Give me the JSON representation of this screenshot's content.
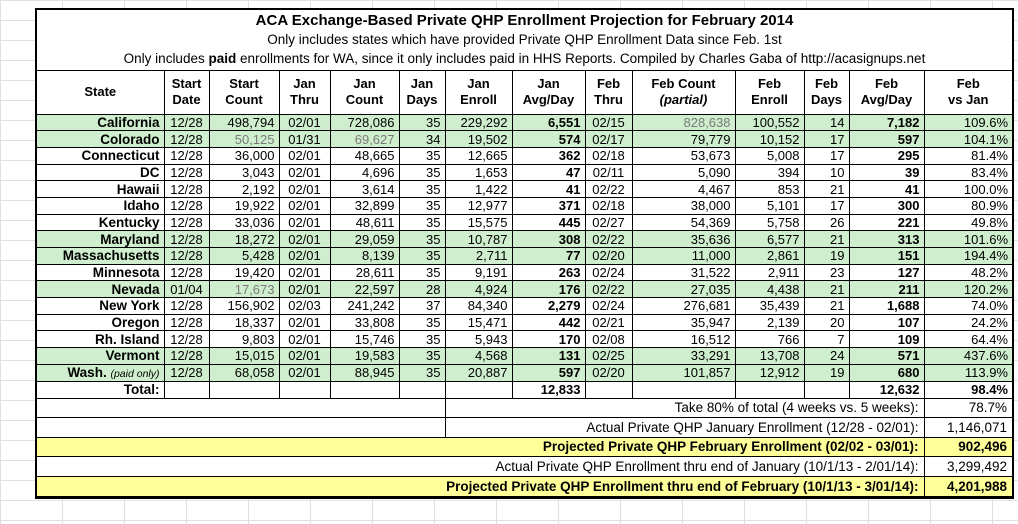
{
  "colors": {
    "row_highlight_green": "#cfeecd",
    "summary_highlight_yellow": "#ffff99",
    "estimate_text_gray": "#7a7a7a",
    "grid_line_gray": "#e0e0e0",
    "border_black": "#000000"
  },
  "chart_data": {
    "type": "table",
    "title": "ACA Exchange-Based Private QHP Enrollment Projection for February 2014",
    "subtitle": "Only includes states which have provided Private QHP Enrollment Data since Feb. 1st",
    "note_parts": {
      "pre": "Only includes ",
      "bold": "paid",
      "post": " enrollments for WA, since it only includes paid in HHS Reports. Compiled by Charles Gaba of http://acasignups.net"
    },
    "columns": [
      {
        "line1": "State",
        "line2": ""
      },
      {
        "line1": "Start",
        "line2": "Date"
      },
      {
        "line1": "Start",
        "line2": "Count"
      },
      {
        "line1": "Jan",
        "line2": "Thru"
      },
      {
        "line1": "Jan",
        "line2": "Count"
      },
      {
        "line1": "Jan",
        "line2": "Days"
      },
      {
        "line1": "Jan",
        "line2": "Enroll"
      },
      {
        "line1": "Jan",
        "line2": "Avg/Day"
      },
      {
        "line1": "Feb",
        "line2": "Thru"
      },
      {
        "line1": "Feb Count",
        "line2": "(partial)",
        "italic": true
      },
      {
        "line1": "Feb",
        "line2": "Enroll"
      },
      {
        "line1": "Feb",
        "line2": "Days"
      },
      {
        "line1": "Feb",
        "line2": "Avg/Day"
      },
      {
        "line1": "Feb",
        "line2": "vs Jan"
      }
    ],
    "rows": [
      {
        "highlight": true,
        "gray_cells": [
          9
        ],
        "cells": [
          "California",
          "12/28",
          "498,794",
          "02/01",
          "728,086",
          "35",
          "229,292",
          "6,551",
          "02/15",
          "828,638",
          "100,552",
          "14",
          "7,182",
          "109.6%"
        ]
      },
      {
        "highlight": true,
        "gray_cells": [
          2,
          4
        ],
        "cells": [
          "Colorado",
          "12/28",
          "50,125",
          "01/31",
          "69,627",
          "34",
          "19,502",
          "574",
          "02/17",
          "79,779",
          "10,152",
          "17",
          "597",
          "104.1%"
        ]
      },
      {
        "highlight": false,
        "gray_cells": [],
        "cells": [
          "Connecticut",
          "12/28",
          "36,000",
          "02/01",
          "48,665",
          "35",
          "12,665",
          "362",
          "02/18",
          "53,673",
          "5,008",
          "17",
          "295",
          "81.4%"
        ]
      },
      {
        "highlight": false,
        "gray_cells": [],
        "cells": [
          "DC",
          "12/28",
          "3,043",
          "02/01",
          "4,696",
          "35",
          "1,653",
          "47",
          "02/11",
          "5,090",
          "394",
          "10",
          "39",
          "83.4%"
        ]
      },
      {
        "highlight": false,
        "gray_cells": [],
        "cells": [
          "Hawaii",
          "12/28",
          "2,192",
          "02/01",
          "3,614",
          "35",
          "1,422",
          "41",
          "02/22",
          "4,467",
          "853",
          "21",
          "41",
          "100.0%"
        ]
      },
      {
        "highlight": false,
        "gray_cells": [],
        "cells": [
          "Idaho",
          "12/28",
          "19,922",
          "02/01",
          "32,899",
          "35",
          "12,977",
          "371",
          "02/18",
          "38,000",
          "5,101",
          "17",
          "300",
          "80.9%"
        ]
      },
      {
        "highlight": false,
        "gray_cells": [],
        "cells": [
          "Kentucky",
          "12/28",
          "33,036",
          "02/01",
          "48,611",
          "35",
          "15,575",
          "445",
          "02/27",
          "54,369",
          "5,758",
          "26",
          "221",
          "49.8%"
        ]
      },
      {
        "highlight": true,
        "gray_cells": [],
        "cells": [
          "Maryland",
          "12/28",
          "18,272",
          "02/01",
          "29,059",
          "35",
          "10,787",
          "308",
          "02/22",
          "35,636",
          "6,577",
          "21",
          "313",
          "101.6%"
        ]
      },
      {
        "highlight": true,
        "gray_cells": [],
        "cells": [
          "Massachusetts",
          "12/28",
          "5,428",
          "02/01",
          "8,139",
          "35",
          "2,711",
          "77",
          "02/20",
          "11,000",
          "2,861",
          "19",
          "151",
          "194.4%"
        ]
      },
      {
        "highlight": false,
        "gray_cells": [],
        "cells": [
          "Minnesota",
          "12/28",
          "19,420",
          "02/01",
          "28,611",
          "35",
          "9,191",
          "263",
          "02/24",
          "31,522",
          "2,911",
          "23",
          "127",
          "48.2%"
        ]
      },
      {
        "highlight": true,
        "gray_cells": [
          2
        ],
        "cells": [
          "Nevada",
          "01/04",
          "17,673",
          "02/01",
          "22,597",
          "28",
          "4,924",
          "176",
          "02/22",
          "27,035",
          "4,438",
          "21",
          "211",
          "120.2%"
        ]
      },
      {
        "highlight": false,
        "gray_cells": [],
        "cells": [
          "New York",
          "12/28",
          "156,902",
          "02/03",
          "241,242",
          "37",
          "84,340",
          "2,279",
          "02/24",
          "276,681",
          "35,439",
          "21",
          "1,688",
          "74.0%"
        ]
      },
      {
        "highlight": false,
        "gray_cells": [],
        "cells": [
          "Oregon",
          "12/28",
          "18,337",
          "02/01",
          "33,808",
          "35",
          "15,471",
          "442",
          "02/21",
          "35,947",
          "2,139",
          "20",
          "107",
          "24.2%"
        ]
      },
      {
        "highlight": false,
        "gray_cells": [],
        "cells": [
          "Rh. Island",
          "12/28",
          "9,803",
          "02/01",
          "15,746",
          "35",
          "5,943",
          "170",
          "02/08",
          "16,512",
          "766",
          "7",
          "109",
          "64.4%"
        ]
      },
      {
        "highlight": true,
        "gray_cells": [],
        "cells": [
          "Vermont",
          "12/28",
          "15,015",
          "02/01",
          "19,583",
          "35",
          "4,568",
          "131",
          "02/25",
          "33,291",
          "13,708",
          "24",
          "571",
          "437.6%"
        ]
      },
      {
        "highlight": true,
        "gray_cells": [],
        "note": "(paid only)",
        "cells": [
          "Wash.",
          "12/28",
          "68,058",
          "02/01",
          "88,945",
          "35",
          "20,887",
          "597",
          "02/20",
          "101,857",
          "12,912",
          "19",
          "680",
          "113.9%"
        ]
      }
    ],
    "total_row": {
      "cells": [
        "Total:",
        "",
        "",
        "",
        "",
        "",
        "",
        "12,833",
        "",
        "",
        "",
        "",
        "12,632",
        "98.4%"
      ]
    },
    "footers": [
      {
        "indent": true,
        "yellow": false,
        "bold": false,
        "label": "Take 80% of total (4 weeks vs. 5 weeks):",
        "value": "78.7%"
      },
      {
        "indent": true,
        "yellow": false,
        "bold": false,
        "label": "Actual Private QHP January Enrollment (12/28 - 02/01):",
        "value": "1,146,071"
      },
      {
        "indent": false,
        "yellow": true,
        "bold": true,
        "label": "Projected Private QHP February Enrollment (02/02 - 03/01):",
        "value": "902,496"
      },
      {
        "indent": false,
        "yellow": false,
        "bold": false,
        "label": "Actual Private QHP Enrollment thru end of January (10/1/13 - 2/01/14):",
        "value": "3,299,492"
      },
      {
        "indent": false,
        "yellow": true,
        "bold": true,
        "label": "Projected Private QHP Enrollment thru end of February (10/1/13 - 3/01/14):",
        "value": "4,201,988"
      }
    ]
  }
}
